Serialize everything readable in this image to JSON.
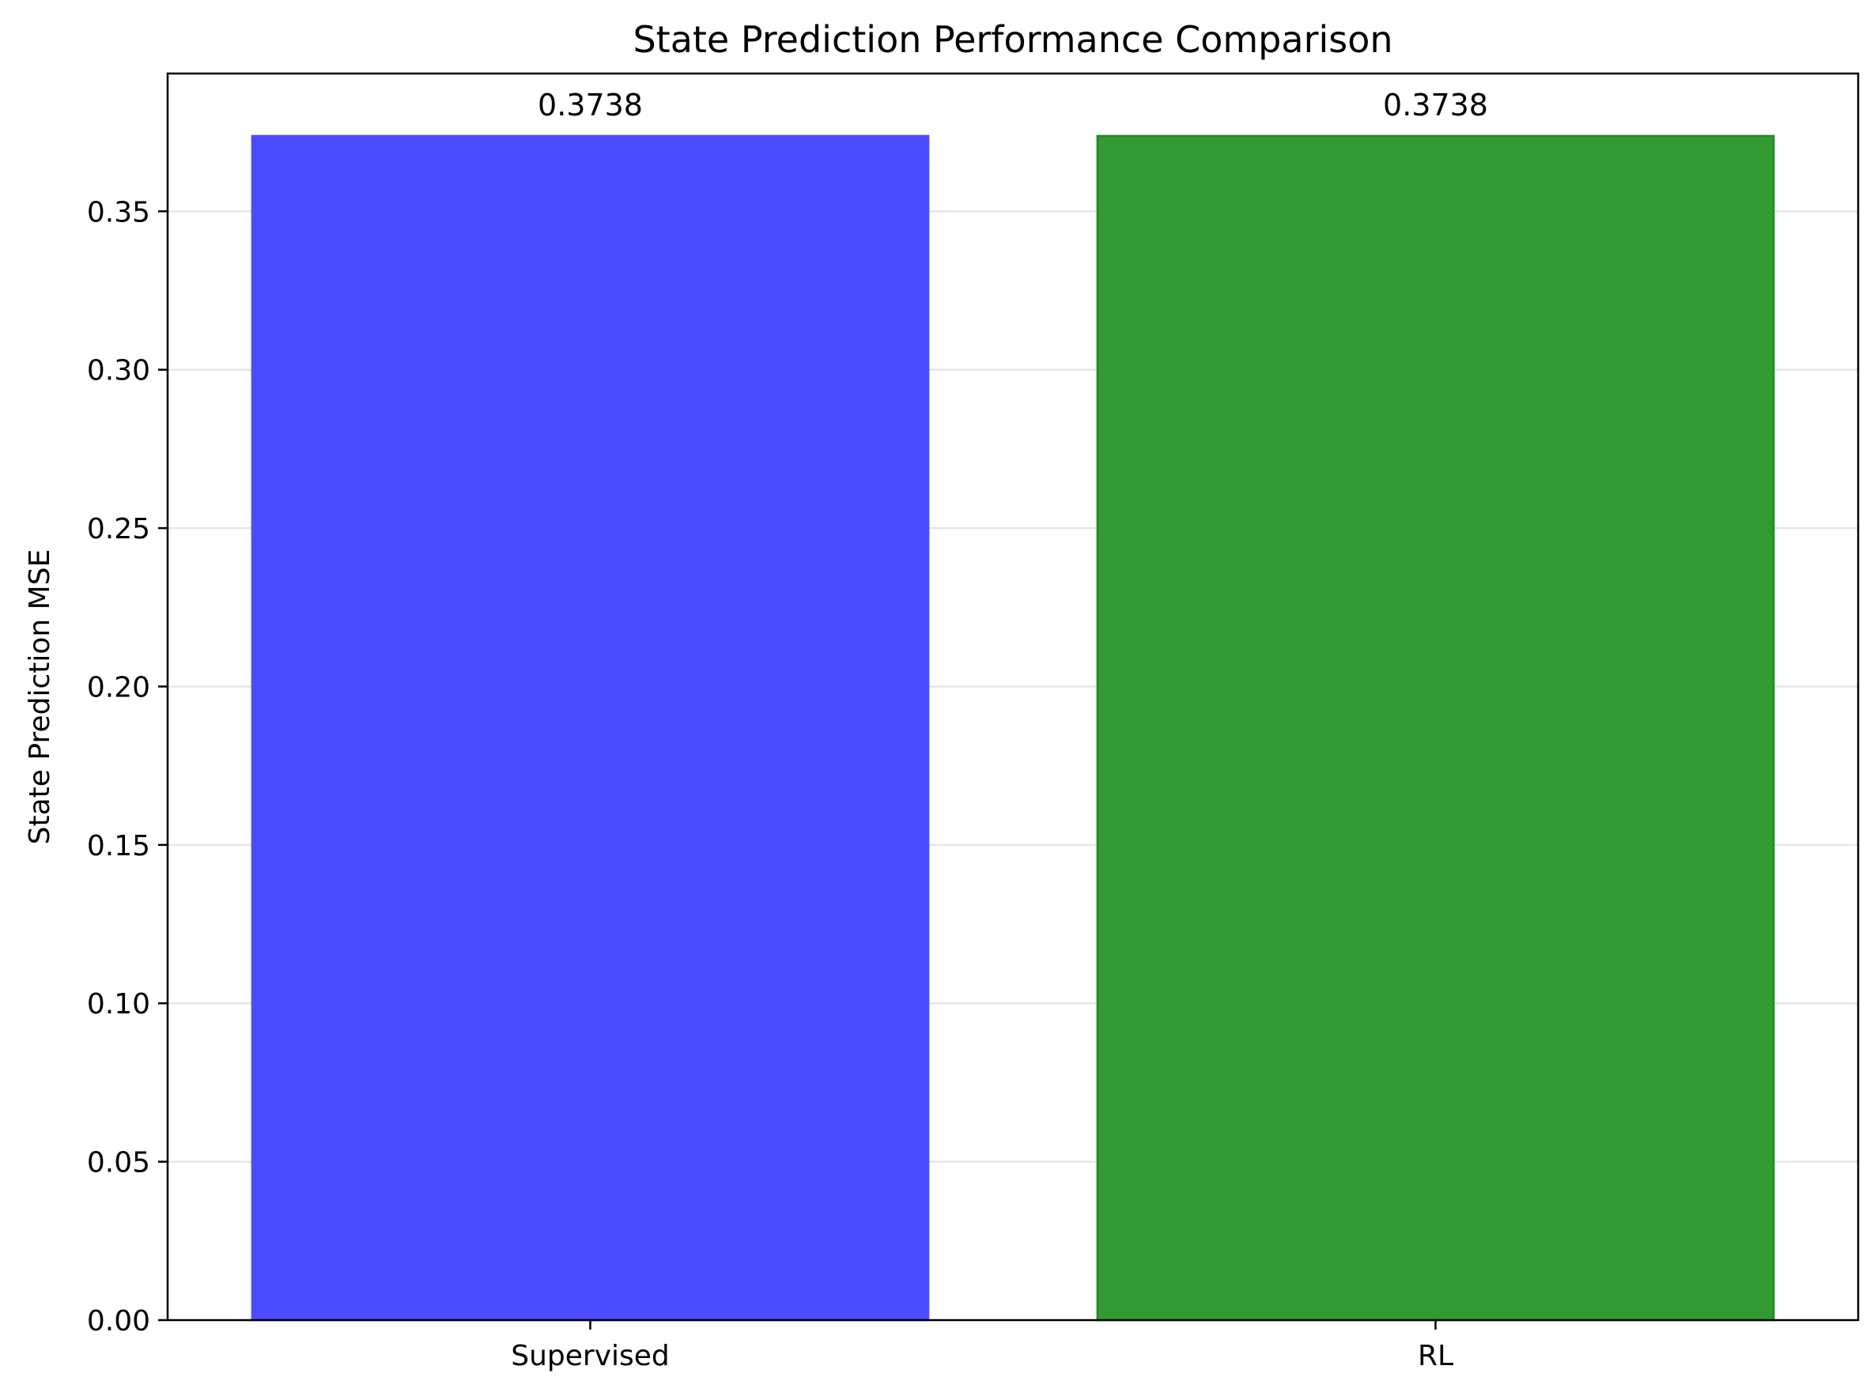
{
  "chart_data": {
    "type": "bar",
    "title": "State Prediction Performance Comparison",
    "xlabel": "",
    "ylabel": "State Prediction MSE",
    "categories": [
      "Supervised",
      "RL"
    ],
    "values": [
      0.3738,
      0.3738
    ],
    "value_labels": [
      "0.3738",
      "0.3738"
    ],
    "colors": [
      "#4c4cff",
      "#339933"
    ],
    "edge_colors": [
      "#4c4cff",
      "#1f8a1f"
    ],
    "ylim": [
      0,
      0.3935
    ],
    "yticks": [
      0.0,
      0.05,
      0.1,
      0.15,
      0.2,
      0.25,
      0.3,
      0.35
    ],
    "ytick_labels": [
      "0.00",
      "0.05",
      "0.10",
      "0.15",
      "0.20",
      "0.25",
      "0.30",
      "0.35"
    ],
    "grid": {
      "y": true,
      "x": false,
      "color": "#e6e6e6"
    },
    "legend": false
  }
}
